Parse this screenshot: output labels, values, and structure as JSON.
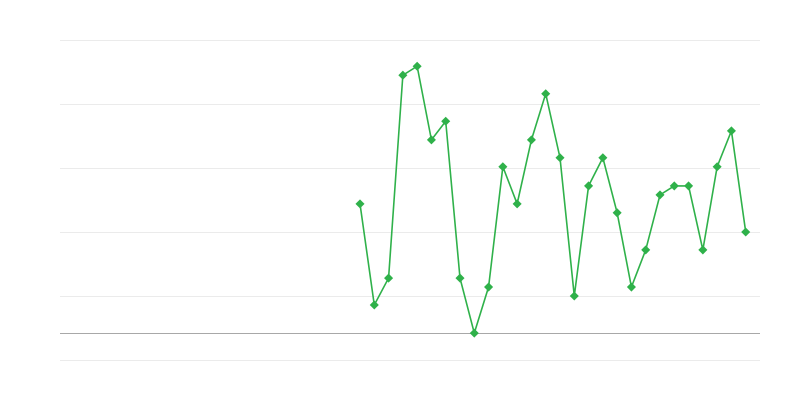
{
  "chart_data": {
    "type": "line",
    "title": "",
    "xlabel": "",
    "ylabel": "",
    "xlim": [
      0,
      49
    ],
    "ylim": [
      0,
      5
    ],
    "baseline": 0.42,
    "grid": true,
    "legend": "none",
    "colors": {
      "series": "#2fb14a",
      "grid": "#ebebeb",
      "baseline": "#a8a8a8"
    },
    "series": [
      {
        "x": [
          21,
          22,
          23,
          24,
          25,
          26,
          27,
          28,
          29,
          30,
          31,
          32,
          33,
          34,
          35,
          36,
          37,
          38,
          39,
          40,
          41,
          42,
          43,
          44,
          45,
          46,
          47,
          48
        ],
        "values": [
          2.44,
          0.86,
          1.28,
          4.45,
          4.59,
          3.44,
          3.73,
          1.28,
          0.42,
          1.14,
          3.02,
          2.44,
          3.44,
          4.16,
          3.16,
          1.0,
          2.72,
          3.16,
          2.3,
          1.14,
          1.72,
          2.58,
          2.72,
          2.72,
          1.72,
          3.02,
          3.58,
          2.0
        ]
      }
    ]
  }
}
